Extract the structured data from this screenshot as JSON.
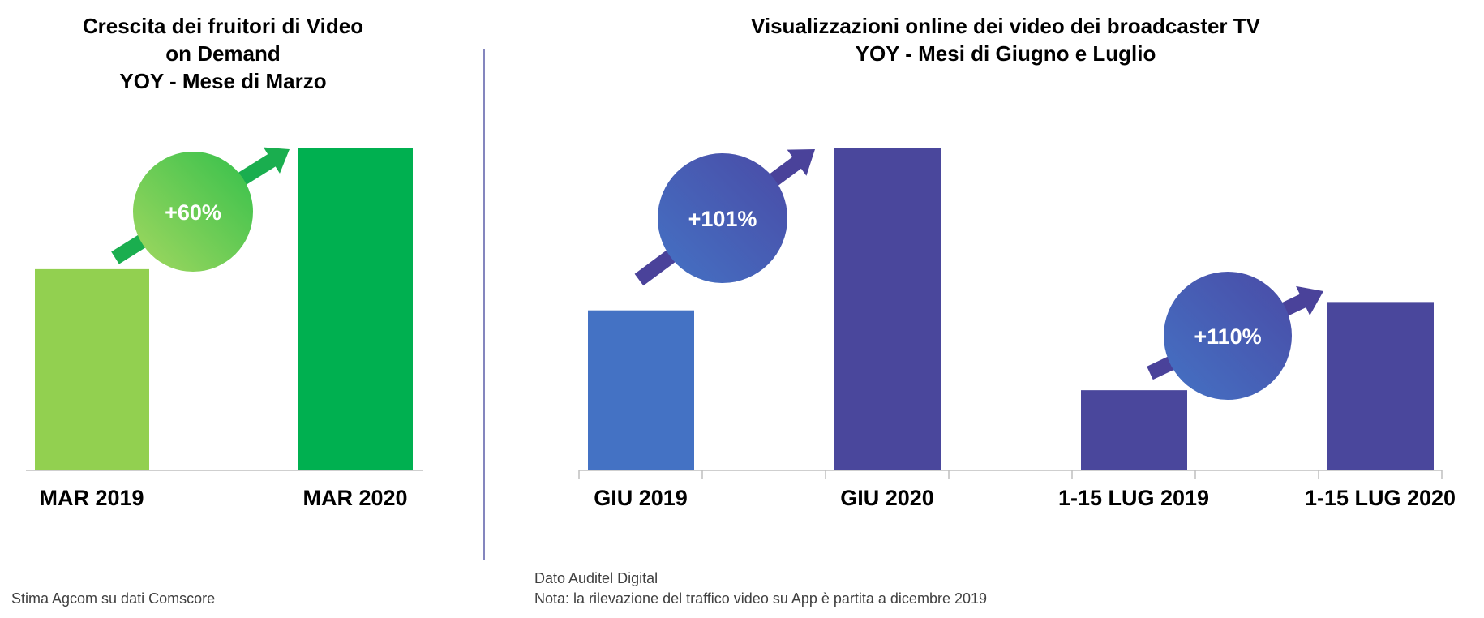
{
  "chart_data": [
    {
      "type": "bar",
      "title_lines": [
        "Crescita dei fruitori di Video",
        "on Demand",
        "YOY - Mese di Marzo"
      ],
      "categories": [
        "MAR 2019",
        "MAR 2020"
      ],
      "values": [
        62.5,
        100
      ],
      "bar_colors": [
        "#92d050",
        "#00b050"
      ],
      "growth_label": "+60%",
      "growth_colors": [
        "#a3d860",
        "#34c04b"
      ],
      "arrow_color": "#1aae4f",
      "ylim": [
        0,
        100
      ],
      "grid": false,
      "source": "Stima Agcom su dati Comscore"
    },
    {
      "type": "bar",
      "title_lines": [
        "Visualizzazioni online dei video dei broadcaster TV",
        "YOY - Mesi di Giugno e Luglio"
      ],
      "categories": [
        "GIU 2019",
        "GIU 2020",
        "1-15 LUG 2019",
        "1-15 LUG 2020"
      ],
      "values": [
        49.7,
        100,
        24.9,
        52.3
      ],
      "bar_colors": [
        "#4472c4",
        "#4a479c",
        "#4a479c",
        "#4a479c"
      ],
      "growth_labels": [
        {
          "from": "GIU 2019",
          "to": "GIU 2020",
          "label": "+101%"
        },
        {
          "from": "1-15 LUG 2019",
          "to": "1-15 LUG 2020",
          "label": "+110%"
        }
      ],
      "growth_colors": [
        "#4472c4",
        "#4a4ba6"
      ],
      "arrow_color": "#4a429a",
      "ylim": [
        0,
        100
      ],
      "grid": false,
      "source_lines": [
        "Dato Auditel Digital",
        "Nota: la rilevazione del traffico video su App è partita a dicembre 2019"
      ]
    }
  ],
  "colors": {
    "divider": "#5b5fa8",
    "axis": "#bfbfbf",
    "note_text": "#404040"
  }
}
